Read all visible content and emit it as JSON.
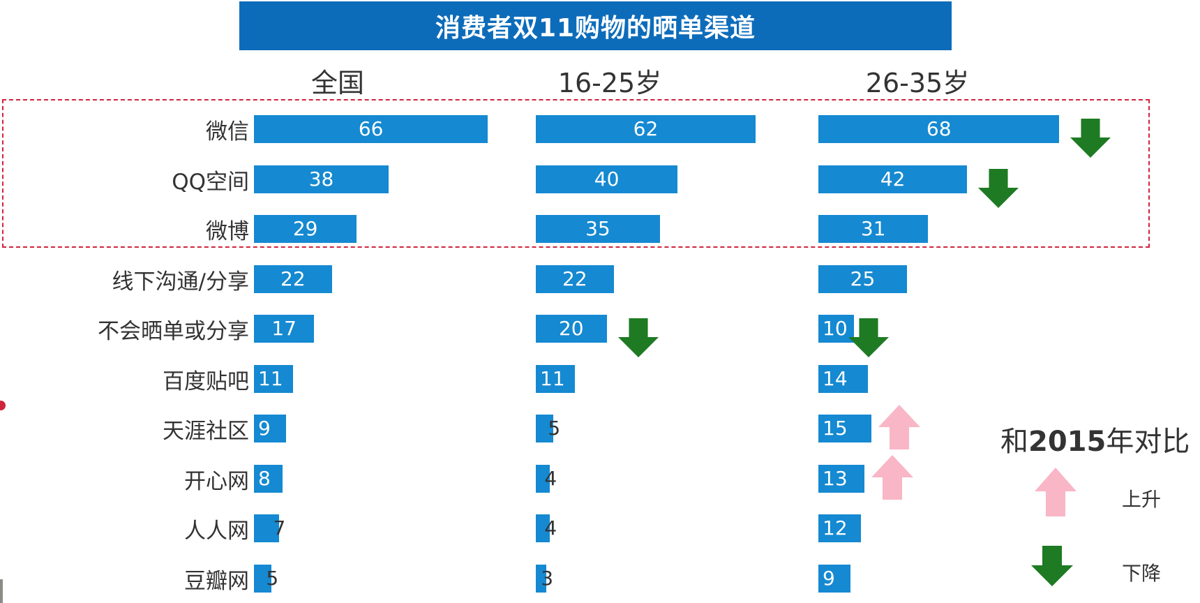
{
  "title": "消费者双11购物的晒单渠道",
  "chart_data": {
    "type": "bar",
    "orientation": "horizontal",
    "title": "消费者双11购物的晒单渠道",
    "categories": [
      "微信",
      "QQ空间",
      "微博",
      "线下沟通/分享",
      "不会晒单或分享",
      "百度贴吧",
      "天涯社区",
      "开心网",
      "人人网",
      "豆瓣网"
    ],
    "series": [
      {
        "name": "全国",
        "values": [
          66,
          38,
          29,
          22,
          17,
          11,
          9,
          8,
          7,
          5
        ]
      },
      {
        "name": "16-25岁",
        "values": [
          62,
          40,
          35,
          22,
          20,
          11,
          5,
          4,
          4,
          3
        ]
      },
      {
        "name": "26-35岁",
        "values": [
          68,
          42,
          31,
          25,
          10,
          14,
          15,
          13,
          12,
          9
        ]
      }
    ],
    "changes": [
      {
        "series": "16-25岁",
        "category": "不会晒单或分享",
        "direction": "down"
      },
      {
        "series": "26-35岁",
        "category": "微信",
        "direction": "down"
      },
      {
        "series": "26-35岁",
        "category": "QQ空间",
        "direction": "down"
      },
      {
        "series": "26-35岁",
        "category": "不会晒单或分享",
        "direction": "down"
      },
      {
        "series": "26-35岁",
        "category": "天涯社区",
        "direction": "up"
      },
      {
        "series": "26-35岁",
        "category": "开心网",
        "direction": "up"
      }
    ],
    "highlighted_categories": [
      "微信",
      "QQ空间",
      "微博"
    ],
    "bar_color": "#1589d1",
    "legend": {
      "title_prefix": "和",
      "title_year": "2015",
      "title_suffix": "年对比",
      "up_label": "上升",
      "down_label": "下降",
      "up_color": "#f9b6c6",
      "down_color": "#1e7a23"
    }
  }
}
